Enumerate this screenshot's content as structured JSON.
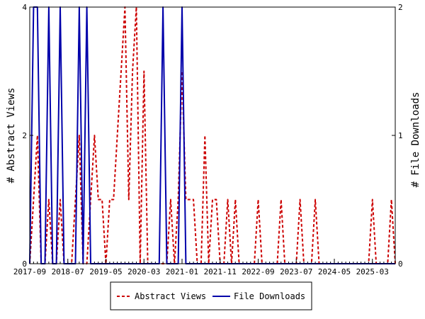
{
  "chart_data": {
    "type": "line",
    "title": "",
    "ylabel_left": "# Abstract Views",
    "ylabel_right": "# File Downloads",
    "ylim_left": [
      0,
      4
    ],
    "ylim_right": [
      0,
      2
    ],
    "left_ticks": [
      "0",
      "2",
      "4"
    ],
    "right_ticks": [
      "0",
      "1",
      "2"
    ],
    "x_range": [
      "2017-09",
      "2025-09"
    ],
    "x_ticks": [
      "2017-09",
      "2018-07",
      "2019-05",
      "2020-03",
      "2021-01",
      "2021-11",
      "2022-09",
      "2023-07",
      "2024-05",
      "2025-03"
    ],
    "legend": {
      "position": "bottom-center",
      "entries": [
        "Abstract Views",
        "File Downloads"
      ]
    },
    "colors": {
      "abstract_views": "#cc0000",
      "file_downloads": "#0000aa",
      "axis": "#000000"
    },
    "series": [
      {
        "name": "Abstract Views",
        "axis": "left",
        "style": "dashed",
        "points": [
          [
            "2017-09",
            0
          ],
          [
            "2017-10",
            1
          ],
          [
            "2017-11",
            2
          ],
          [
            "2017-12",
            0
          ],
          [
            "2018-01",
            0
          ],
          [
            "2018-02",
            1
          ],
          [
            "2018-03",
            0
          ],
          [
            "2018-04",
            0
          ],
          [
            "2018-05",
            1
          ],
          [
            "2018-06",
            0
          ],
          [
            "2018-07",
            0
          ],
          [
            "2018-08",
            0
          ],
          [
            "2018-09",
            1
          ],
          [
            "2018-10",
            2
          ],
          [
            "2018-11",
            0
          ],
          [
            "2018-12",
            0
          ],
          [
            "2019-01",
            1
          ],
          [
            "2019-02",
            2
          ],
          [
            "2019-03",
            1
          ],
          [
            "2019-04",
            1
          ],
          [
            "2019-05",
            0
          ],
          [
            "2019-06",
            1
          ],
          [
            "2019-07",
            1
          ],
          [
            "2019-08",
            2
          ],
          [
            "2019-09",
            3
          ],
          [
            "2019-10",
            4
          ],
          [
            "2019-11",
            1
          ],
          [
            "2019-12",
            3
          ],
          [
            "2020-01",
            4
          ],
          [
            "2020-02",
            0
          ],
          [
            "2020-03",
            3
          ],
          [
            "2020-04",
            0
          ],
          [
            "2020-05",
            0
          ],
          [
            "2020-06",
            0
          ],
          [
            "2020-07",
            0
          ],
          [
            "2020-08",
            0
          ],
          [
            "2020-09",
            0
          ],
          [
            "2020-10",
            1
          ],
          [
            "2020-11",
            0
          ],
          [
            "2020-12",
            1
          ],
          [
            "2021-01",
            3
          ],
          [
            "2021-02",
            1
          ],
          [
            "2021-03",
            1
          ],
          [
            "2021-04",
            1
          ],
          [
            "2021-05",
            0
          ],
          [
            "2021-06",
            0
          ],
          [
            "2021-07",
            2
          ],
          [
            "2021-08",
            0
          ],
          [
            "2021-09",
            1
          ],
          [
            "2021-10",
            1
          ],
          [
            "2021-11",
            0
          ],
          [
            "2021-12",
            0
          ],
          [
            "2022-01",
            1
          ],
          [
            "2022-02",
            0
          ],
          [
            "2022-03",
            1
          ],
          [
            "2022-04",
            0
          ],
          [
            "2022-05",
            0
          ],
          [
            "2022-06",
            0
          ],
          [
            "2022-07",
            0
          ],
          [
            "2022-08",
            0
          ],
          [
            "2022-09",
            1
          ],
          [
            "2022-10",
            0
          ],
          [
            "2022-11",
            0
          ],
          [
            "2022-12",
            0
          ],
          [
            "2023-01",
            0
          ],
          [
            "2023-02",
            0
          ],
          [
            "2023-03",
            1
          ],
          [
            "2023-04",
            0
          ],
          [
            "2023-05",
            0
          ],
          [
            "2023-06",
            0
          ],
          [
            "2023-07",
            0
          ],
          [
            "2023-08",
            1
          ],
          [
            "2023-09",
            0
          ],
          [
            "2023-10",
            0
          ],
          [
            "2023-11",
            0
          ],
          [
            "2023-12",
            1
          ],
          [
            "2024-01",
            0
          ],
          [
            "2024-02",
            0
          ],
          [
            "2024-03",
            0
          ],
          [
            "2024-04",
            0
          ],
          [
            "2024-05",
            0
          ],
          [
            "2024-06",
            0
          ],
          [
            "2024-07",
            0
          ],
          [
            "2024-08",
            0
          ],
          [
            "2024-09",
            0
          ],
          [
            "2024-10",
            0
          ],
          [
            "2024-11",
            0
          ],
          [
            "2024-12",
            0
          ],
          [
            "2025-01",
            0
          ],
          [
            "2025-02",
            0
          ],
          [
            "2025-03",
            1
          ],
          [
            "2025-04",
            0
          ],
          [
            "2025-05",
            0
          ],
          [
            "2025-06",
            0
          ],
          [
            "2025-07",
            0
          ],
          [
            "2025-08",
            1
          ],
          [
            "2025-09",
            0
          ]
        ]
      },
      {
        "name": "File Downloads",
        "axis": "right",
        "style": "solid",
        "points": [
          [
            "2017-09",
            0
          ],
          [
            "2017-10",
            2
          ],
          [
            "2017-11",
            2
          ],
          [
            "2017-12",
            0
          ],
          [
            "2018-01",
            0
          ],
          [
            "2018-02",
            2
          ],
          [
            "2018-03",
            0
          ],
          [
            "2018-04",
            0
          ],
          [
            "2018-05",
            2
          ],
          [
            "2018-06",
            0
          ],
          [
            "2018-07",
            0
          ],
          [
            "2018-08",
            0
          ],
          [
            "2018-09",
            0
          ],
          [
            "2018-10",
            2
          ],
          [
            "2018-11",
            0
          ],
          [
            "2018-12",
            2
          ],
          [
            "2019-01",
            0
          ],
          [
            "2019-02",
            0
          ],
          [
            "2019-03",
            0
          ],
          [
            "2019-04",
            0
          ],
          [
            "2019-05",
            0
          ],
          [
            "2019-06",
            0
          ],
          [
            "2019-07",
            0
          ],
          [
            "2019-08",
            0
          ],
          [
            "2019-09",
            0
          ],
          [
            "2019-10",
            0
          ],
          [
            "2019-11",
            0
          ],
          [
            "2019-12",
            0
          ],
          [
            "2020-01",
            0
          ],
          [
            "2020-02",
            0
          ],
          [
            "2020-03",
            0
          ],
          [
            "2020-04",
            0
          ],
          [
            "2020-05",
            0
          ],
          [
            "2020-06",
            0
          ],
          [
            "2020-07",
            0
          ],
          [
            "2020-08",
            2
          ],
          [
            "2020-09",
            0
          ],
          [
            "2020-10",
            0
          ],
          [
            "2020-11",
            0
          ],
          [
            "2020-12",
            0
          ],
          [
            "2021-01",
            2
          ],
          [
            "2021-02",
            0
          ],
          [
            "2021-03",
            0
          ],
          [
            "2021-04",
            0
          ],
          [
            "2021-05",
            0
          ],
          [
            "2021-06",
            0
          ],
          [
            "2021-07",
            0
          ],
          [
            "2021-08",
            0
          ],
          [
            "2021-09",
            0
          ],
          [
            "2021-10",
            0
          ],
          [
            "2021-11",
            0
          ],
          [
            "2021-12",
            0
          ],
          [
            "2022-01",
            0
          ],
          [
            "2022-02",
            0
          ],
          [
            "2022-03",
            0
          ],
          [
            "2022-04",
            0
          ],
          [
            "2022-05",
            0
          ],
          [
            "2022-06",
            0
          ],
          [
            "2022-07",
            0
          ],
          [
            "2022-08",
            0
          ],
          [
            "2022-09",
            0
          ],
          [
            "2022-10",
            0
          ],
          [
            "2022-11",
            0
          ],
          [
            "2022-12",
            0
          ],
          [
            "2023-01",
            0
          ],
          [
            "2023-02",
            0
          ],
          [
            "2023-03",
            0
          ],
          [
            "2023-04",
            0
          ],
          [
            "2023-05",
            0
          ],
          [
            "2023-06",
            0
          ],
          [
            "2023-07",
            0
          ],
          [
            "2023-08",
            0
          ],
          [
            "2023-09",
            0
          ],
          [
            "2023-10",
            0
          ],
          [
            "2023-11",
            0
          ],
          [
            "2023-12",
            0
          ],
          [
            "2024-01",
            0
          ],
          [
            "2024-02",
            0
          ],
          [
            "2024-03",
            0
          ],
          [
            "2024-04",
            0
          ],
          [
            "2024-05",
            0
          ],
          [
            "2024-06",
            0
          ],
          [
            "2024-07",
            0
          ],
          [
            "2024-08",
            0
          ],
          [
            "2024-09",
            0
          ],
          [
            "2024-10",
            0
          ],
          [
            "2024-11",
            0
          ],
          [
            "2024-12",
            0
          ],
          [
            "2025-01",
            0
          ],
          [
            "2025-02",
            0
          ],
          [
            "2025-03",
            0
          ],
          [
            "2025-04",
            0
          ],
          [
            "2025-05",
            0
          ],
          [
            "2025-06",
            0
          ],
          [
            "2025-07",
            0
          ],
          [
            "2025-08",
            0
          ],
          [
            "2025-09",
            0
          ]
        ]
      }
    ]
  }
}
